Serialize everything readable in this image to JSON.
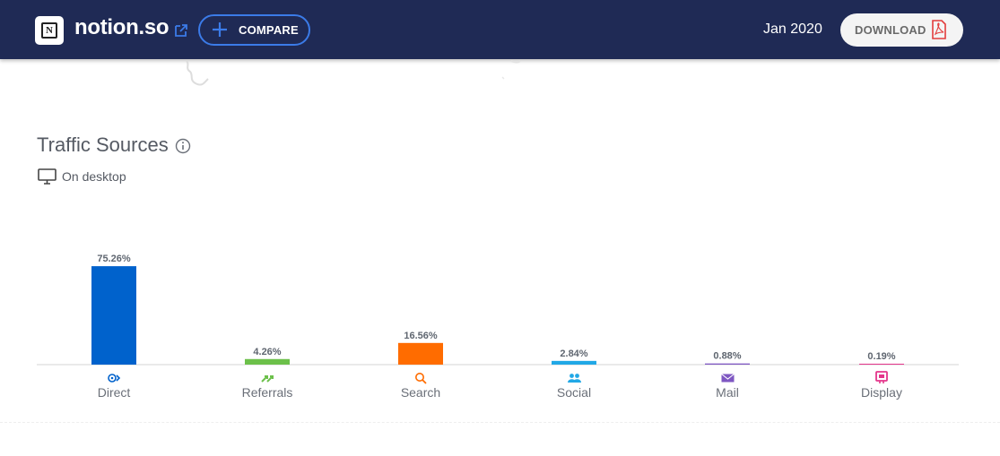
{
  "header": {
    "site_name": "notion.so",
    "compare_label": "COMPARE",
    "date": "Jan 2020",
    "download_label": "DOWNLOAD",
    "logo_letter": "N"
  },
  "section": {
    "title": "Traffic Sources",
    "device_label": "On desktop"
  },
  "colors": {
    "header_bg": "#1f2a55",
    "accent_blue": "#3b7be8",
    "pdf_red": "#e23c3c"
  },
  "chart_data": {
    "type": "bar",
    "title": "",
    "xlabel": "",
    "ylabel": "",
    "ylim": [
      0,
      100
    ],
    "grid": false,
    "categories": [
      "Direct",
      "Referrals",
      "Search",
      "Social",
      "Mail",
      "Display"
    ],
    "values": [
      75.26,
      4.26,
      16.56,
      2.84,
      0.88,
      0.19
    ],
    "value_labels": [
      "75.26%",
      "4.26%",
      "16.56%",
      "2.84%",
      "0.88%",
      "0.19%"
    ],
    "colors": [
      "#0062cc",
      "#6cc04a",
      "#ff6c00",
      "#21a8e6",
      "#7e57c2",
      "#e4358b"
    ],
    "icons": [
      "direct-icon",
      "referrals-icon",
      "search-icon",
      "social-icon",
      "mail-icon",
      "display-icon"
    ]
  }
}
